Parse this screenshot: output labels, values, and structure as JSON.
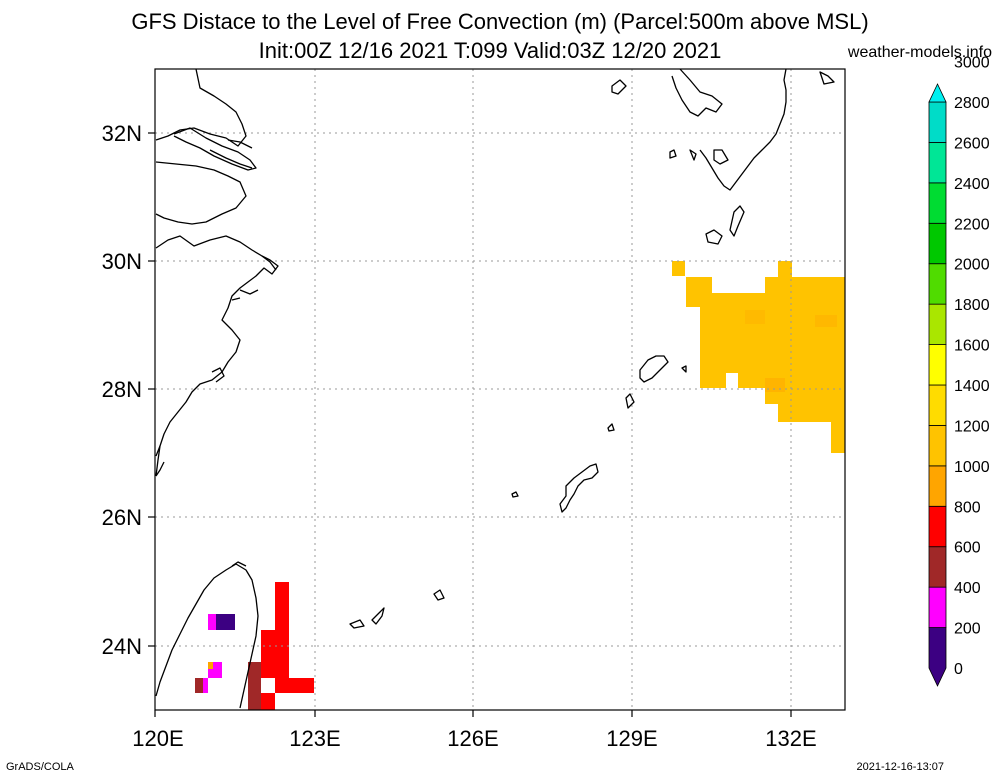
{
  "title_line1": "GFS Distace to the Level of Free Convection (m) (Parcel:500m above MSL)",
  "title_line2": "Init:00Z 12/16 2021 T:099 Valid:03Z 12/20 2021",
  "site": "weather-models.info",
  "footer_left": "GrADS/COLA",
  "footer_right": "2021-12-16-13:07",
  "map": {
    "lon_range": [
      120,
      133
    ],
    "lat_range": [
      23,
      33
    ],
    "lon_ticks": [
      "120E",
      "123E",
      "126E",
      "129E",
      "132E"
    ],
    "lat_ticks": [
      "24N",
      "26N",
      "28N",
      "30N",
      "32N"
    ]
  },
  "colorbar": {
    "labels": [
      "0",
      "200",
      "400",
      "600",
      "800",
      "1000",
      "1200",
      "1400",
      "1600",
      "1800",
      "2000",
      "2200",
      "2400",
      "2600",
      "2800",
      "3000"
    ],
    "colors": [
      "#3c0082",
      "#ff00ff",
      "#a02828",
      "#ff0000",
      "#ffa500",
      "#ffc300",
      "#ffdc00",
      "#ffff00",
      "#aae600",
      "#50dc00",
      "#00c800",
      "#00dc32",
      "#00e696",
      "#00dcc8",
      "#00f0f0"
    ]
  }
}
